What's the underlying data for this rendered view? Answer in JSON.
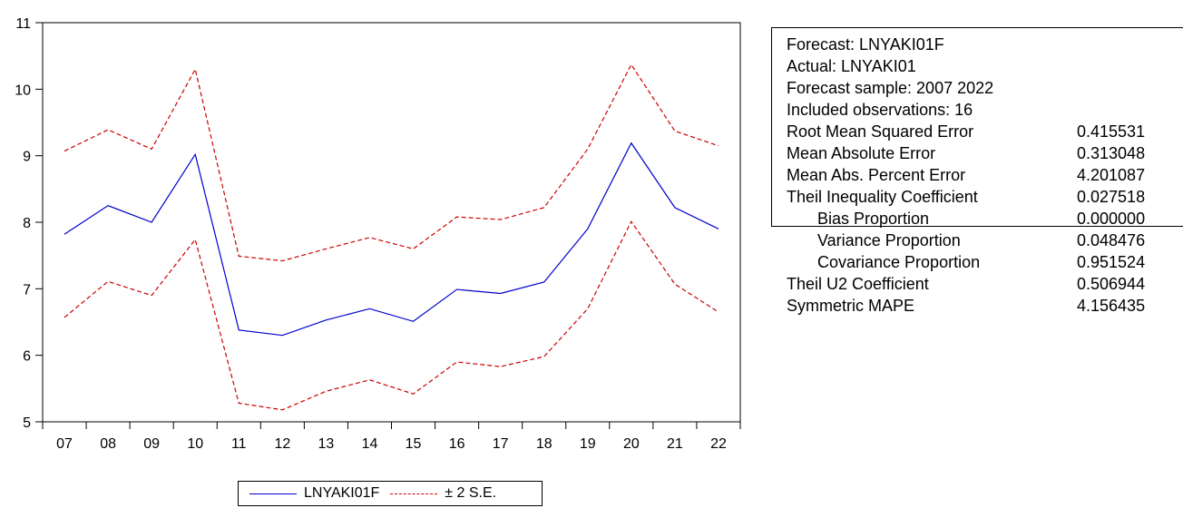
{
  "chart_data": {
    "type": "line",
    "categories": [
      "07",
      "08",
      "09",
      "10",
      "11",
      "12",
      "13",
      "14",
      "15",
      "16",
      "17",
      "18",
      "19",
      "20",
      "21",
      "22"
    ],
    "ylim": [
      5,
      11
    ],
    "yticks": [
      5,
      6,
      7,
      8,
      9,
      10,
      11
    ],
    "grid": false,
    "legend_position": "bottom",
    "series": [
      {
        "name": "LNYAKI01F",
        "style": "solid",
        "color": "#0000cc",
        "values": [
          7.82,
          8.25,
          8.0,
          9.02,
          6.38,
          6.3,
          6.53,
          6.7,
          6.51,
          6.99,
          6.93,
          7.1,
          7.9,
          9.19,
          8.22,
          7.9
        ]
      },
      {
        "name": "± 2 S.E.",
        "style": "dashed",
        "color": "#cc0000",
        "values": [
          9.07,
          9.39,
          9.1,
          10.3,
          7.49,
          7.42,
          7.6,
          7.77,
          7.6,
          8.08,
          8.04,
          8.22,
          9.1,
          10.37,
          9.37,
          9.15
        ]
      },
      {
        "name": "",
        "style": "dashed",
        "color": "#cc0000",
        "values": [
          6.57,
          7.11,
          6.9,
          7.74,
          5.28,
          5.18,
          5.46,
          5.63,
          5.42,
          5.9,
          5.83,
          5.98,
          6.7,
          8.01,
          7.07,
          6.65
        ]
      }
    ]
  },
  "stats": {
    "lines": [
      "Forecast: LNYAKI01F",
      "Actual: LNYAKI01",
      "Forecast sample: 2007 2022",
      "Included observations: 16"
    ],
    "rows": [
      {
        "label": "Root Mean Squared Error",
        "value": "0.415531",
        "indent": false
      },
      {
        "label": "Mean Absolute Error",
        "value": "0.313048",
        "indent": false
      },
      {
        "label": "Mean Abs. Percent Error",
        "value": "4.201087",
        "indent": false
      },
      {
        "label": "Theil Inequality Coefficient",
        "value": "0.027518",
        "indent": false
      },
      {
        "label": "Bias Proportion",
        "value": "0.000000",
        "indent": true
      },
      {
        "label": "Variance Proportion",
        "value": "0.048476",
        "indent": true
      },
      {
        "label": "Covariance Proportion",
        "value": "0.951524",
        "indent": true
      },
      {
        "label": "Theil U2 Coefficient",
        "value": "0.506944",
        "indent": false
      },
      {
        "label": "Symmetric MAPE",
        "value": "4.156435",
        "indent": false
      }
    ]
  },
  "legend": {
    "forecast_label": "LNYAKI01F",
    "band_label": "± 2 S.E."
  }
}
